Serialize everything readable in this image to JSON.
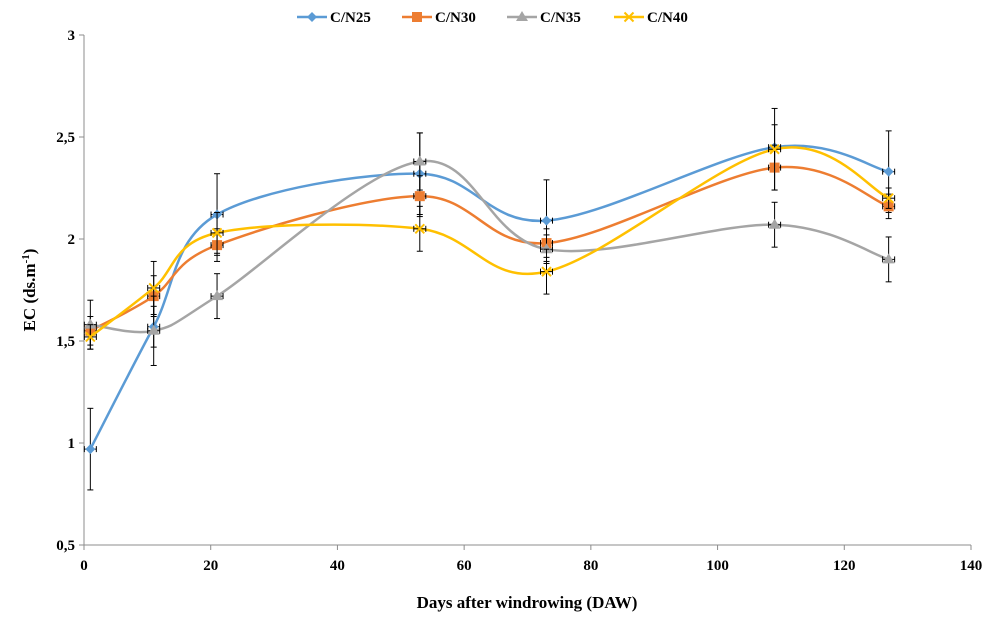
{
  "chart_data": {
    "type": "line",
    "title": "",
    "xlabel": "Days after windrowing (DAW)",
    "ylabel_main": "EC (ds.m",
    "ylabel_sup": "-1",
    "ylabel_close": ")",
    "xlim": [
      0,
      140
    ],
    "ylim": [
      0.5,
      3
    ],
    "x_ticks": [
      0,
      20,
      40,
      60,
      80,
      100,
      120,
      140
    ],
    "x_tick_labels": [
      "0",
      "20",
      "40",
      "60",
      "80",
      "100",
      "120",
      "140"
    ],
    "y_ticks": [
      0.5,
      1,
      1.5,
      2,
      2.5,
      3
    ],
    "y_tick_labels": [
      "0,5",
      "1",
      "1,5",
      "2",
      "2,5",
      "3"
    ],
    "grid": false,
    "legend_position": "top-center",
    "smooth": true,
    "series": [
      {
        "name": "C/N25",
        "color": "#5b9bd5",
        "marker": "diamond",
        "x": [
          1,
          11,
          21,
          53,
          73,
          109,
          127
        ],
        "y": [
          0.97,
          1.57,
          2.12,
          2.32,
          2.09,
          2.45,
          2.33
        ],
        "err": [
          0.2,
          0.1,
          0.2,
          0.2,
          0.2,
          0.11,
          0.2
        ]
      },
      {
        "name": "C/N30",
        "color": "#ed7d31",
        "marker": "square",
        "x": [
          1,
          11,
          21,
          53,
          73,
          109,
          127
        ],
        "y": [
          1.55,
          1.72,
          1.97,
          2.21,
          1.98,
          2.35,
          2.16
        ],
        "err": [
          0.07,
          0.1,
          0.08,
          0.1,
          0.07,
          0.11,
          0.06
        ]
      },
      {
        "name": "C/N35",
        "color": "#a5a5a5",
        "marker": "triangle",
        "x": [
          1,
          11,
          21,
          53,
          73,
          109,
          127
        ],
        "y": [
          1.58,
          1.55,
          1.72,
          2.38,
          1.95,
          2.07,
          1.9
        ],
        "err": [
          0.12,
          0.17,
          0.11,
          0.14,
          0.07,
          0.11,
          0.11
        ]
      },
      {
        "name": "C/N40",
        "color": "#ffc000",
        "marker": "x",
        "x": [
          1,
          11,
          21,
          53,
          73,
          109,
          127
        ],
        "y": [
          1.52,
          1.76,
          2.03,
          2.05,
          1.84,
          2.44,
          2.2
        ],
        "err": [
          0.06,
          0.13,
          0.1,
          0.11,
          0.11,
          0.2,
          0.05
        ]
      }
    ]
  }
}
